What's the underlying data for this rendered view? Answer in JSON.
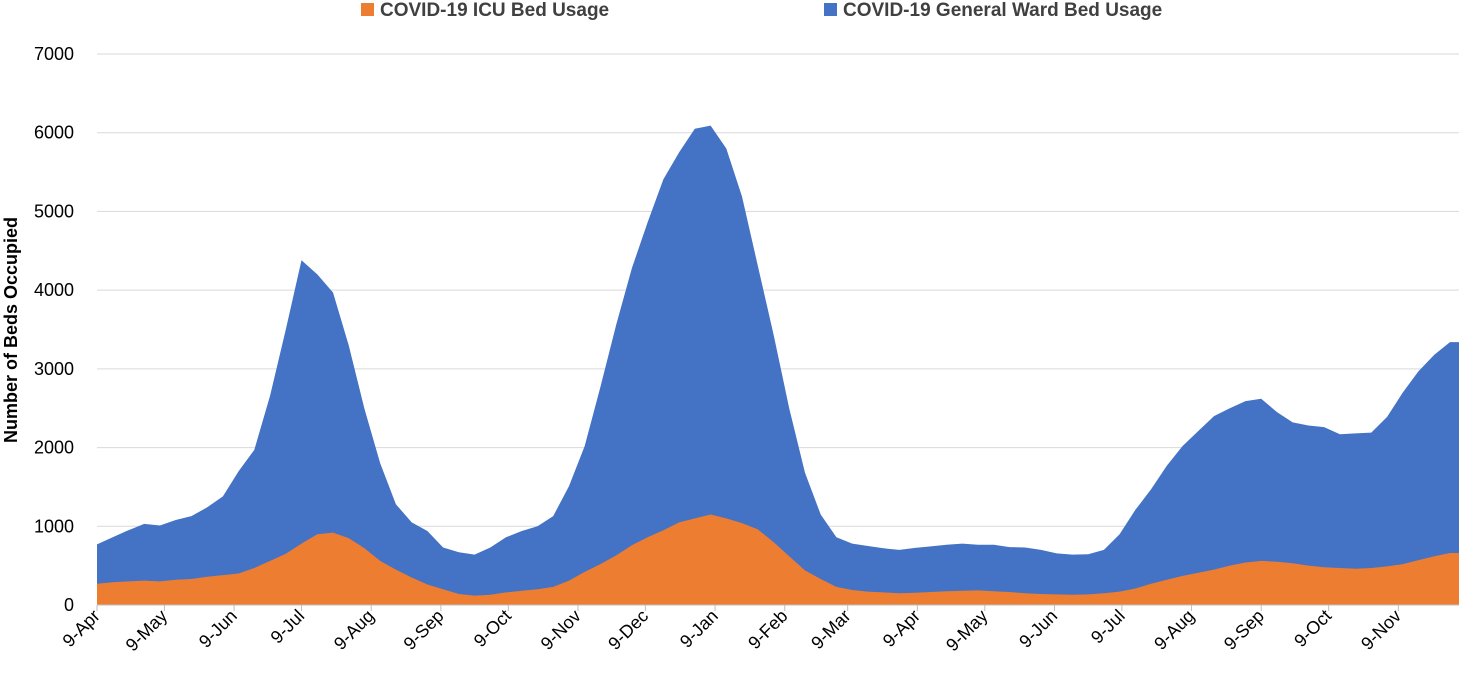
{
  "chart_data": {
    "type": "area",
    "title": "",
    "xlabel": "",
    "ylabel": "Number of Beds Occupied",
    "ylim": [
      0,
      7000
    ],
    "yticks": [
      "0",
      "1000",
      "2000",
      "3000",
      "4000",
      "5000",
      "6000",
      "7000"
    ],
    "xticks": [
      "9-Apr",
      "9-May",
      "9-Jun",
      "9-Jul",
      "9-Aug",
      "9-Sep",
      "9-Oct",
      "9-Nov",
      "9-Dec",
      "9-Jan",
      "9-Feb",
      "9-Mar",
      "9-Apr",
      "9-May",
      "9-Jun",
      "9-Jul",
      "9-Aug",
      "9-Sep",
      "9-Oct",
      "9-Nov"
    ],
    "grid": true,
    "legend_position": "top",
    "stacked": true,
    "x": [
      "2020-04-09",
      "2020-04-16",
      "2020-04-23",
      "2020-04-30",
      "2020-05-07",
      "2020-05-14",
      "2020-05-21",
      "2020-05-28",
      "2020-06-04",
      "2020-06-11",
      "2020-06-18",
      "2020-06-25",
      "2020-07-02",
      "2020-07-09",
      "2020-07-16",
      "2020-07-23",
      "2020-07-30",
      "2020-08-06",
      "2020-08-13",
      "2020-08-20",
      "2020-08-27",
      "2020-09-03",
      "2020-09-10",
      "2020-09-17",
      "2020-09-24",
      "2020-10-01",
      "2020-10-08",
      "2020-10-15",
      "2020-10-22",
      "2020-10-29",
      "2020-11-05",
      "2020-11-12",
      "2020-11-19",
      "2020-11-26",
      "2020-12-03",
      "2020-12-10",
      "2020-12-17",
      "2020-12-24",
      "2020-12-31",
      "2021-01-07",
      "2021-01-14",
      "2021-01-21",
      "2021-01-28",
      "2021-02-04",
      "2021-02-11",
      "2021-02-18",
      "2021-02-25",
      "2021-03-04",
      "2021-03-11",
      "2021-03-18",
      "2021-03-25",
      "2021-04-01",
      "2021-04-08",
      "2021-04-15",
      "2021-04-22",
      "2021-04-29",
      "2021-05-06",
      "2021-05-13",
      "2021-05-20",
      "2021-05-27",
      "2021-06-03",
      "2021-06-10",
      "2021-06-17",
      "2021-06-24",
      "2021-07-01",
      "2021-07-08",
      "2021-07-15",
      "2021-07-22",
      "2021-07-29",
      "2021-08-05",
      "2021-08-12",
      "2021-08-19",
      "2021-08-26",
      "2021-09-02",
      "2021-09-09",
      "2021-09-16",
      "2021-09-23",
      "2021-09-30",
      "2021-10-07",
      "2021-10-14",
      "2021-10-21",
      "2021-10-28",
      "2021-11-04",
      "2021-11-11",
      "2021-11-18",
      "2021-11-25",
      "2021-12-02"
    ],
    "series": [
      {
        "name": "COVID-19 ICU Bed Usage",
        "color": "#ED7D31",
        "values": [
          270,
          290,
          300,
          310,
          300,
          320,
          330,
          360,
          380,
          400,
          470,
          560,
          650,
          780,
          900,
          920,
          850,
          720,
          560,
          450,
          350,
          260,
          200,
          140,
          120,
          130,
          160,
          180,
          200,
          230,
          310,
          420,
          520,
          630,
          760,
          860,
          950,
          1050,
          1100,
          1150,
          1100,
          1040,
          960,
          800,
          620,
          440,
          330,
          230,
          190,
          170,
          160,
          150,
          155,
          165,
          175,
          180,
          185,
          175,
          165,
          150,
          140,
          135,
          130,
          135,
          150,
          170,
          210,
          270,
          320,
          370,
          410,
          450,
          500,
          540,
          560,
          550,
          530,
          500,
          480,
          470,
          460,
          470,
          490,
          520,
          570,
          620,
          660
        ]
      },
      {
        "name": "COVID-19 General Ward Bed Usage",
        "color": "#4472C4",
        "values": [
          500,
          570,
          650,
          720,
          710,
          760,
          800,
          880,
          1000,
          1300,
          1500,
          2100,
          2850,
          3600,
          3300,
          3050,
          2450,
          1770,
          1240,
          830,
          700,
          680,
          530,
          530,
          520,
          600,
          700,
          760,
          800,
          900,
          1200,
          1600,
          2250,
          2930,
          3520,
          4000,
          4460,
          4700,
          4950,
          4940,
          4700,
          4150,
          3350,
          2640,
          1880,
          1240,
          820,
          630,
          590,
          580,
          560,
          550,
          570,
          580,
          590,
          600,
          580,
          590,
          570,
          580,
          560,
          520,
          510,
          510,
          550,
          730,
          1000,
          1200,
          1450,
          1650,
          1800,
          1950,
          2000,
          2050,
          2060,
          1900,
          1790,
          1780,
          1780,
          1700,
          1720,
          1720,
          1900,
          2180,
          2400,
          2560,
          2680
        ]
      }
    ]
  }
}
